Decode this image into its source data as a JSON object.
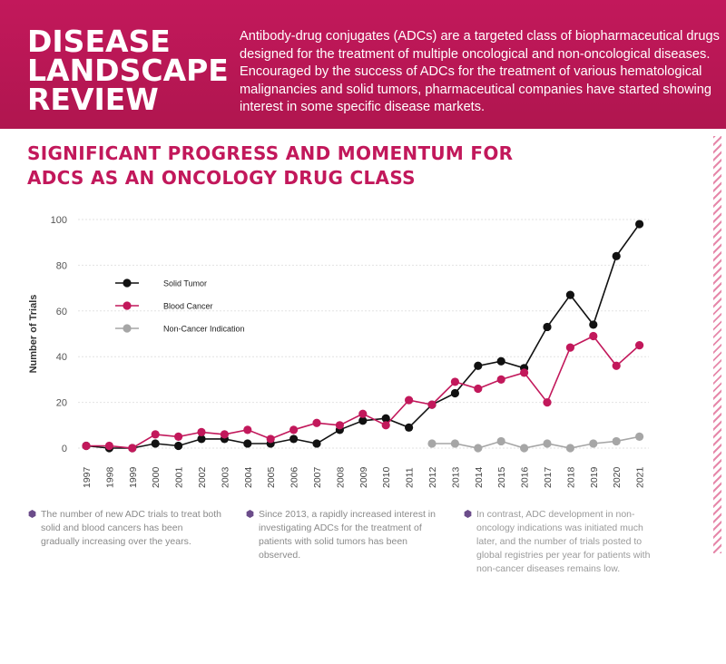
{
  "banner": {
    "title_lines": [
      "DISEASE",
      "LANDSCAPE",
      "REVIEW"
    ],
    "text": "Antibody-drug conjugates (ADCs) are a targeted class of biopharmaceutical drugs designed for the treatment of multiple oncological and non-oncological diseases. Encouraged by the success of ADCs for the treatment of various hematological malignancies and solid tumors, pharmaceutical companies have started showing interest in some specific disease markets."
  },
  "section": {
    "title_lines": [
      "SIGNIFICANT PROGRESS AND MOMENTUM FOR",
      "ADCS AS AN ONCOLOGY DRUG CLASS"
    ]
  },
  "colors": {
    "brand": "#c2185b",
    "solid": "#111111",
    "blood": "#c2185b",
    "noncancer": "#a6a6a6",
    "bullet": "#6b4c8a"
  },
  "chart_data": {
    "type": "line",
    "title": "",
    "xlabel": "",
    "ylabel": "Number of Trials",
    "ylim": [
      0,
      100
    ],
    "yticks": [
      0,
      20,
      40,
      60,
      80,
      100
    ],
    "categories": [
      "1997",
      "1998",
      "1999",
      "2000",
      "2001",
      "2002",
      "2003",
      "2004",
      "2005",
      "2006",
      "2007",
      "2008",
      "2009",
      "2010",
      "2011",
      "2012",
      "2013",
      "2014",
      "2015",
      "2016",
      "2017",
      "2018",
      "2019",
      "2020",
      "2021"
    ],
    "legend_position": "top-left",
    "series": [
      {
        "name": "Solid Tumor",
        "color": "#111111",
        "values": [
          1,
          0,
          0,
          2,
          1,
          4,
          4,
          2,
          2,
          4,
          2,
          8,
          12,
          13,
          9,
          19,
          24,
          36,
          38,
          35,
          53,
          67,
          54,
          84,
          98
        ]
      },
      {
        "name": "Blood Cancer",
        "color": "#c2185b",
        "values": [
          1,
          1,
          0,
          6,
          5,
          7,
          6,
          8,
          4,
          8,
          11,
          10,
          15,
          10,
          21,
          19,
          29,
          26,
          30,
          33,
          20,
          44,
          49,
          36,
          45
        ]
      },
      {
        "name": "Non-Cancer Indication",
        "color": "#a6a6a6",
        "values": [
          null,
          null,
          null,
          null,
          null,
          null,
          null,
          null,
          null,
          null,
          null,
          null,
          null,
          null,
          null,
          2,
          2,
          0,
          3,
          0,
          2,
          0,
          2,
          3,
          5
        ]
      }
    ]
  },
  "notes": [
    "The number of new ADC trials to treat both solid and blood cancers has been gradually increasing over the years.",
    "Since 2013, a rapidly increased interest in investigating ADCs for the treatment of patients with solid tumors has been observed.",
    "In contrast, ADC development in non-oncology indications was initiated much later, and the number of trials posted to global registries per year for patients with non-cancer diseases remains low."
  ]
}
